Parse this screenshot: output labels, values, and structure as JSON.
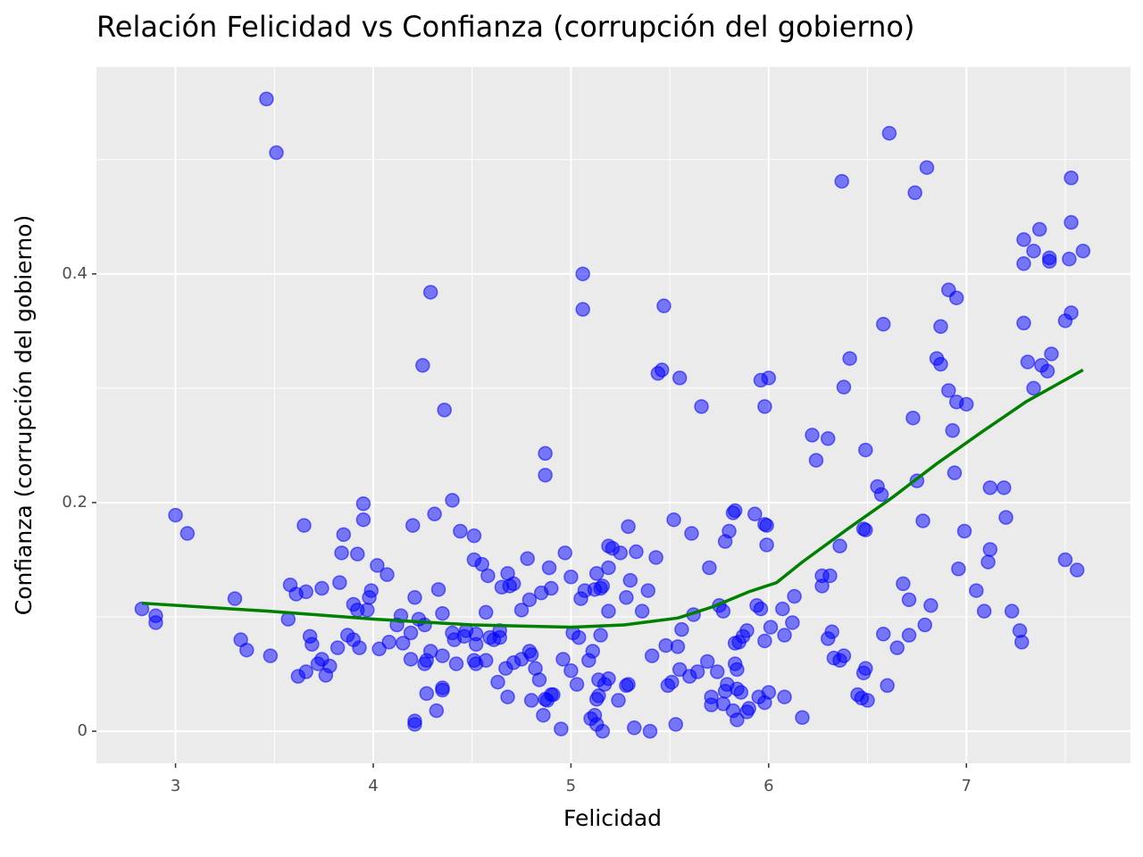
{
  "chart_data": {
    "type": "scatter",
    "title": "Relación Felicidad vs Confianza (corrupción del gobierno)",
    "xlabel": "Felicidad",
    "ylabel": "Confianza (corrupción del gobierno)",
    "xlim": [
      2.6,
      7.83
    ],
    "ylim": [
      -0.028,
      0.581
    ],
    "xticks": [
      3,
      4,
      5,
      6,
      7
    ],
    "yticks": [
      0,
      0.2,
      0.4
    ],
    "xminorticks": [
      3.5,
      4.5,
      5.5,
      6.5,
      7.5
    ],
    "yminorticks": [
      0.1,
      0.3,
      0.5
    ],
    "grid": true,
    "points": {
      "color": "#0000ff",
      "x": [
        2.83,
        2.9,
        2.9,
        3.0,
        3.06,
        3.3,
        3.33,
        3.36,
        3.46,
        3.48,
        3.51,
        3.57,
        3.58,
        3.61,
        3.62,
        3.65,
        3.66,
        3.66,
        3.68,
        3.69,
        3.72,
        3.74,
        3.74,
        3.76,
        3.78,
        3.82,
        3.83,
        3.84,
        3.85,
        3.87,
        3.9,
        3.9,
        3.92,
        3.92,
        3.93,
        3.95,
        3.95,
        3.97,
        3.98,
        3.99,
        4.02,
        4.03,
        4.07,
        4.08,
        4.12,
        4.14,
        4.15,
        4.19,
        4.19,
        4.2,
        4.21,
        4.21,
        4.21,
        4.23,
        4.25,
        4.26,
        4.26,
        4.27,
        4.27,
        4.29,
        4.29,
        4.31,
        4.32,
        4.33,
        4.35,
        4.35,
        4.35,
        4.35,
        4.36,
        4.4,
        4.4,
        4.41,
        4.42,
        4.44,
        4.46,
        4.47,
        4.51,
        4.51,
        4.51,
        4.52,
        4.52,
        4.52,
        4.55,
        4.57,
        4.57,
        4.58,
        4.59,
        4.61,
        4.63,
        4.64,
        4.64,
        4.65,
        4.68,
        4.67,
        4.68,
        4.69,
        4.71,
        4.71,
        4.75,
        4.75,
        4.78,
        4.79,
        4.79,
        4.8,
        4.8,
        4.82,
        4.84,
        4.85,
        4.86,
        4.87,
        4.87,
        4.87,
        4.88,
        4.89,
        4.9,
        4.9,
        4.91,
        4.95,
        4.96,
        4.97,
        5.0,
        5.0,
        5.01,
        5.03,
        5.04,
        5.05,
        5.06,
        5.06,
        5.07,
        5.09,
        5.1,
        5.11,
        5.12,
        5.12,
        5.13,
        5.13,
        5.13,
        5.14,
        5.14,
        5.15,
        5.15,
        5.16,
        5.16,
        5.17,
        5.19,
        5.19,
        5.19,
        5.19,
        5.21,
        5.24,
        5.25,
        5.28,
        5.28,
        5.29,
        5.29,
        5.3,
        5.32,
        5.33,
        5.36,
        5.39,
        5.4,
        5.41,
        5.43,
        5.44,
        5.46,
        5.47,
        5.48,
        5.49,
        5.51,
        5.52,
        5.53,
        5.54,
        5.55,
        5.55,
        5.56,
        5.6,
        5.61,
        5.62,
        5.64,
        5.66,
        5.69,
        5.7,
        5.71,
        5.71,
        5.74,
        5.75,
        5.77,
        5.77,
        5.78,
        5.78,
        5.79,
        5.8,
        5.82,
        5.82,
        5.83,
        5.83,
        5.83,
        5.84,
        5.84,
        5.84,
        5.85,
        5.86,
        5.87,
        5.89,
        5.89,
        5.9,
        5.93,
        5.94,
        5.95,
        5.96,
        5.96,
        5.98,
        5.98,
        5.99,
        5.98,
        5.98,
        5.99,
        6.0,
        6.0,
        6.01,
        6.07,
        6.08,
        6.08,
        6.12,
        6.13,
        6.17,
        6.22,
        6.24,
        6.27,
        6.27,
        6.3,
        6.3,
        6.31,
        6.32,
        6.33,
        6.36,
        6.36,
        6.37,
        6.38,
        6.38,
        6.41,
        6.45,
        6.48,
        6.48,
        6.49,
        6.49,
        6.49,
        6.47,
        6.5,
        6.55,
        6.57,
        6.58,
        6.58,
        6.6,
        6.61,
        6.65,
        6.68,
        6.71,
        6.71,
        6.73,
        6.74,
        6.75,
        6.78,
        6.79,
        6.8,
        6.82,
        6.85,
        6.87,
        6.87,
        6.91,
        6.91,
        6.93,
        6.94,
        6.95,
        6.95,
        6.96,
        6.99,
        7.0,
        7.05,
        7.09,
        7.11,
        7.12,
        7.12,
        7.19,
        7.2,
        7.23,
        7.27,
        7.28,
        7.29,
        7.29,
        7.29,
        7.31,
        7.34,
        7.34,
        7.37,
        7.38,
        7.41,
        7.42,
        7.42,
        7.43,
        7.5,
        7.5,
        7.52,
        7.53,
        7.53,
        7.53,
        7.56,
        7.59
      ],
      "y": [
        0.107,
        0.101,
        0.095,
        0.189,
        0.173,
        0.116,
        0.08,
        0.071,
        0.553,
        0.066,
        0.506,
        0.098,
        0.128,
        0.12,
        0.048,
        0.18,
        0.122,
        0.052,
        0.083,
        0.076,
        0.059,
        0.125,
        0.063,
        0.049,
        0.057,
        0.073,
        0.13,
        0.156,
        0.172,
        0.084,
        0.111,
        0.08,
        0.155,
        0.106,
        0.073,
        0.185,
        0.199,
        0.106,
        0.117,
        0.123,
        0.145,
        0.072,
        0.137,
        0.078,
        0.093,
        0.101,
        0.077,
        0.086,
        0.063,
        0.18,
        0.009,
        0.006,
        0.117,
        0.098,
        0.32,
        0.059,
        0.093,
        0.062,
        0.033,
        0.384,
        0.07,
        0.19,
        0.018,
        0.124,
        0.038,
        0.036,
        0.103,
        0.066,
        0.281,
        0.202,
        0.086,
        0.08,
        0.059,
        0.175,
        0.083,
        0.088,
        0.171,
        0.15,
        0.062,
        0.059,
        0.076,
        0.085,
        0.146,
        0.104,
        0.062,
        0.136,
        0.082,
        0.08,
        0.043,
        0.088,
        0.082,
        0.126,
        0.138,
        0.055,
        0.03,
        0.127,
        0.06,
        0.129,
        0.106,
        0.063,
        0.151,
        0.07,
        0.115,
        0.027,
        0.067,
        0.055,
        0.045,
        0.121,
        0.014,
        0.028,
        0.243,
        0.224,
        0.027,
        0.143,
        0.032,
        0.125,
        0.032,
        0.002,
        0.063,
        0.156,
        0.135,
        0.053,
        0.086,
        0.041,
        0.082,
        0.116,
        0.4,
        0.369,
        0.123,
        0.062,
        0.011,
        0.07,
        0.014,
        0.124,
        0.138,
        0.028,
        0.006,
        0.031,
        0.045,
        0.084,
        0.125,
        0.0,
        0.127,
        0.041,
        0.046,
        0.162,
        0.143,
        0.105,
        0.16,
        0.027,
        0.156,
        0.04,
        0.117,
        0.041,
        0.179,
        0.132,
        0.003,
        0.157,
        0.105,
        0.123,
        0.0,
        0.066,
        0.152,
        0.313,
        0.316,
        0.372,
        0.075,
        0.04,
        0.043,
        0.185,
        0.006,
        0.074,
        0.054,
        0.309,
        0.089,
        0.048,
        0.173,
        0.102,
        0.052,
        0.284,
        0.061,
        0.143,
        0.023,
        0.03,
        0.052,
        0.11,
        0.105,
        0.024,
        0.166,
        0.035,
        0.041,
        0.175,
        0.018,
        0.191,
        0.059,
        0.077,
        0.193,
        0.01,
        0.054,
        0.037,
        0.078,
        0.034,
        0.083,
        0.017,
        0.088,
        0.02,
        0.19,
        0.11,
        0.03,
        0.107,
        0.307,
        0.181,
        0.025,
        0.18,
        0.079,
        0.284,
        0.163,
        0.034,
        0.309,
        0.091,
        0.107,
        0.03,
        0.084,
        0.095,
        0.118,
        0.012,
        0.259,
        0.237,
        0.127,
        0.136,
        0.256,
        0.081,
        0.136,
        0.087,
        0.064,
        0.162,
        0.062,
        0.481,
        0.301,
        0.066,
        0.326,
        0.032,
        0.051,
        0.177,
        0.055,
        0.246,
        0.176,
        0.029,
        0.027,
        0.214,
        0.207,
        0.356,
        0.085,
        0.04,
        0.523,
        0.073,
        0.129,
        0.115,
        0.084,
        0.274,
        0.471,
        0.219,
        0.184,
        0.093,
        0.493,
        0.11,
        0.326,
        0.321,
        0.354,
        0.386,
        0.298,
        0.263,
        0.226,
        0.288,
        0.379,
        0.142,
        0.175,
        0.286,
        0.123,
        0.105,
        0.148,
        0.213,
        0.159,
        0.213,
        0.187,
        0.105,
        0.088,
        0.078,
        0.43,
        0.357,
        0.409,
        0.323,
        0.42,
        0.3,
        0.439,
        0.32,
        0.315,
        0.414,
        0.411,
        0.33,
        0.15,
        0.359,
        0.413,
        0.445,
        0.366,
        0.484,
        0.141,
        0.42
      ]
    },
    "trend": {
      "color": "#008000",
      "x": [
        2.83,
        3.47,
        4.01,
        4.5,
        5.0,
        5.27,
        5.54,
        5.72,
        5.9,
        6.04,
        6.17,
        6.4,
        6.63,
        6.85,
        7.08,
        7.3,
        7.59
      ],
      "y": [
        0.112,
        0.105,
        0.098,
        0.093,
        0.091,
        0.093,
        0.099,
        0.109,
        0.122,
        0.13,
        0.148,
        0.177,
        0.205,
        0.234,
        0.262,
        0.288,
        0.316
      ]
    }
  }
}
